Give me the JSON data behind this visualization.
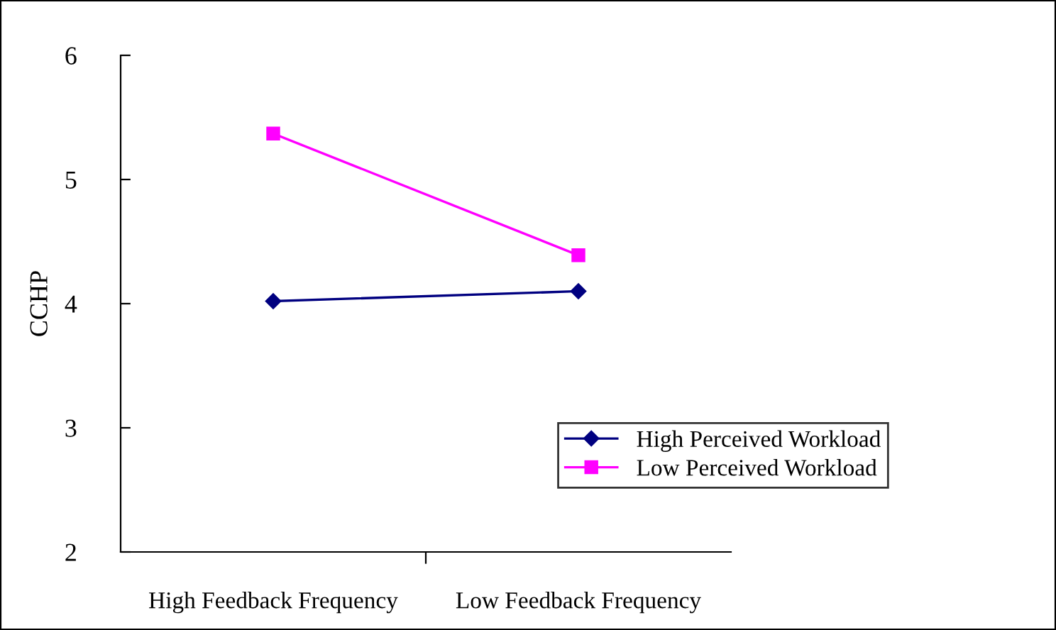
{
  "chart_data": {
    "type": "line",
    "ylabel": "CCHP",
    "categories": [
      "High Feedback Frequency",
      "Low Feedback Frequency"
    ],
    "series": [
      {
        "name": "High Perceived Workload",
        "color": "#000080",
        "values": [
          4.02,
          4.1
        ],
        "marker": "diamond"
      },
      {
        "name": "Low Perceived Workload",
        "color": "#ff00ff",
        "values": [
          5.37,
          4.39
        ],
        "marker": "square"
      }
    ],
    "ylim": [
      2,
      6
    ],
    "yticks": [
      2,
      3,
      4,
      5,
      6
    ],
    "legend": "bottom right",
    "grid": false
  }
}
